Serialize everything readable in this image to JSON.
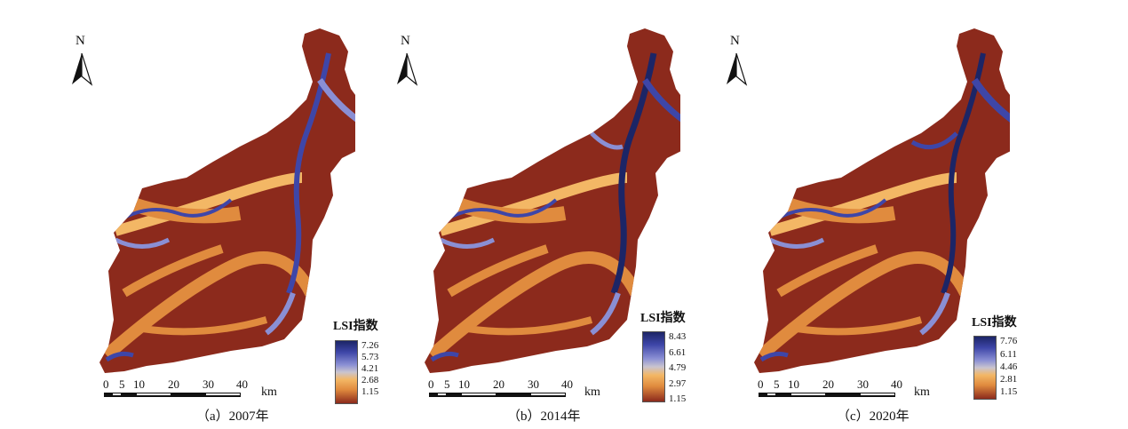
{
  "panels": [
    {
      "north_label": "N",
      "legend_title": "LSI指数",
      "legend_ticks": [
        "7.26",
        "5.73",
        "4.21",
        "2.68",
        "1.15"
      ],
      "scale_ticks": [
        "0",
        "5",
        "10",
        "20",
        "30",
        "40"
      ],
      "scale_unit": "km",
      "caption": "（a）2007年"
    },
    {
      "north_label": "N",
      "legend_title": "LSI指数",
      "legend_ticks": [
        "8.43",
        "6.61",
        "4.79",
        "2.97",
        "1.15"
      ],
      "scale_ticks": [
        "0",
        "5",
        "10",
        "20",
        "30",
        "40"
      ],
      "scale_unit": "km",
      "caption": "（b）2014年"
    },
    {
      "north_label": "N",
      "legend_title": "LSI指数",
      "legend_ticks": [
        "7.76",
        "6.11",
        "4.46",
        "2.81",
        "1.15"
      ],
      "scale_ticks": [
        "0",
        "5",
        "10",
        "20",
        "30",
        "40"
      ],
      "scale_unit": "km",
      "caption": "（c）2020年"
    }
  ],
  "colors": {
    "low": "#8c2a1c",
    "mid_low": "#e08b3e",
    "mid": "#c9c4cf",
    "mid_high": "#3e46a8",
    "high": "#1c2566"
  }
}
